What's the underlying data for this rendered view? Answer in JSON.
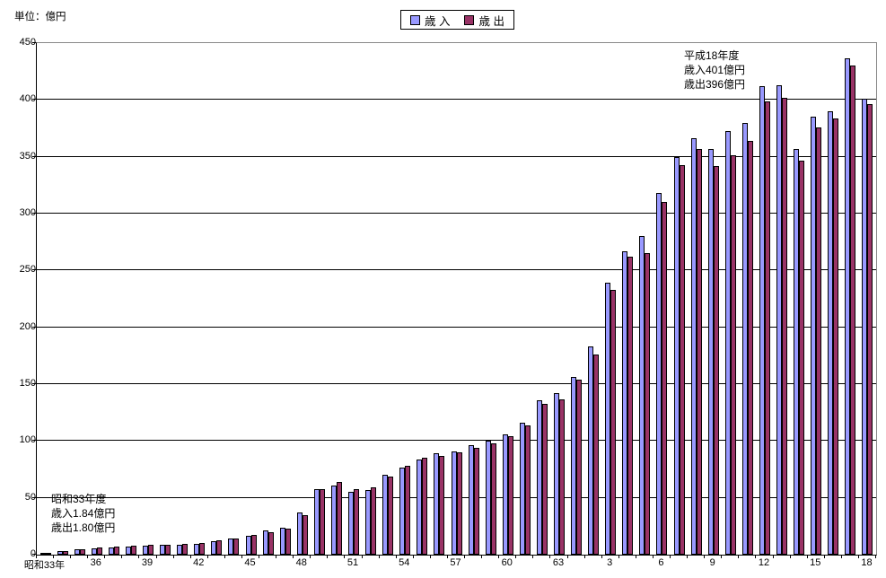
{
  "header": {
    "unit_label": "単位：億円"
  },
  "legend": {
    "items": [
      {
        "label": "歳 入",
        "color": "#9999FF"
      },
      {
        "label": "歳 出",
        "color": "#993366"
      }
    ]
  },
  "annotations": {
    "first_year": {
      "lines": [
        "昭和33年度",
        "歳入1.84億円",
        "歳出1.80億円"
      ]
    },
    "last_year": {
      "lines": [
        "平成18年度",
        "歳入401億円",
        "歳出396億円"
      ]
    }
  },
  "chart_data": {
    "type": "bar",
    "title": "",
    "unit": "億円",
    "unit_label": "単位：億円",
    "categories": [
      "昭和33年",
      "昭和34年",
      "昭和35年",
      "昭和36年",
      "昭和37年",
      "昭和38年",
      "昭和39年",
      "昭和40年",
      "昭和41年",
      "昭和42年",
      "昭和43年",
      "昭和44年",
      "昭和45年",
      "昭和46年",
      "昭和47年",
      "昭和48年",
      "昭和49年",
      "昭和50年",
      "昭和51年",
      "昭和52年",
      "昭和53年",
      "昭和54年",
      "昭和55年",
      "昭和56年",
      "昭和57年",
      "昭和58年",
      "昭和59年",
      "昭和60年",
      "昭和61年",
      "昭和62年",
      "昭和63年",
      "平成元年",
      "平成2年",
      "平成3年",
      "平成4年",
      "平成5年",
      "平成6年",
      "平成7年",
      "平成8年",
      "平成9年",
      "平成10年",
      "平成11年",
      "平成12年",
      "平成13年",
      "平成14年",
      "平成15年",
      "平成16年",
      "平成17年",
      "平成18年"
    ],
    "x_tick_labels": [
      "昭和33年",
      "36",
      "39",
      "42",
      "45",
      "48",
      "51",
      "54",
      "57",
      "60",
      "63",
      "3",
      "6",
      "9",
      "12",
      "15",
      "18"
    ],
    "x_tick_every": 3,
    "series": [
      {
        "name": "歳入",
        "color": "#9999FF",
        "values": [
          1.84,
          3,
          4.5,
          5.5,
          6.5,
          7,
          8,
          8.5,
          9,
          9.5,
          11.5,
          14,
          17,
          21,
          24,
          37,
          58,
          61,
          55,
          57,
          70,
          77,
          84,
          89,
          91,
          96,
          100,
          106,
          116,
          136,
          142,
          156,
          183,
          239,
          267,
          280,
          318,
          350,
          366,
          357,
          373,
          380,
          412,
          413,
          357,
          385,
          390,
          437,
          401
        ]
      },
      {
        "name": "歳出",
        "color": "#993366",
        "values": [
          1.8,
          3.5,
          5,
          6,
          7,
          8,
          9,
          9,
          9.5,
          10,
          12.5,
          14.5,
          17.5,
          20,
          23,
          35,
          58,
          64,
          58,
          59,
          69,
          78,
          85,
          87,
          90,
          94,
          98,
          104,
          114,
          133,
          137,
          154,
          176,
          233,
          262,
          265,
          310,
          343,
          357,
          342,
          351,
          364,
          399,
          402,
          347,
          376,
          384,
          430,
          396
        ]
      }
    ],
    "ylim": [
      0,
      450
    ],
    "y_tick_step": 50,
    "grid": true,
    "legend_position": "top-center"
  }
}
